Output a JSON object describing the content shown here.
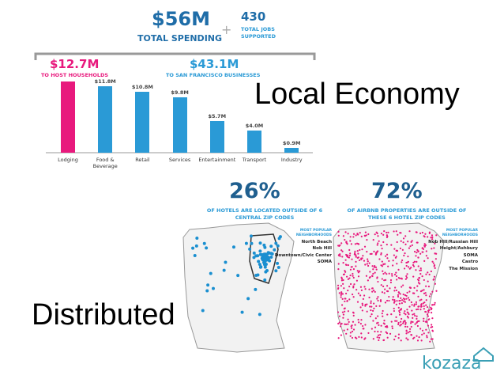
{
  "header": {
    "spending": "$56M",
    "spending_label": "TOTAL SPENDING",
    "plus": "+",
    "jobs": "430",
    "jobs_label": "TOTAL JOBS SUPPORTED",
    "households": "$12.7M",
    "households_label": "TO HOST HOUSEHOLDS",
    "businesses": "$43.1M",
    "businesses_label": "TO SAN FRANCISCO BUSINESSES"
  },
  "chart_data": {
    "type": "bar",
    "categories": [
      "Lodging",
      "Food & Beverage",
      "Retail",
      "Services",
      "Entertainment",
      "Transport",
      "Industry"
    ],
    "values": [
      12.7,
      11.8,
      10.8,
      9.8,
      5.7,
      4.0,
      0.9
    ],
    "value_labels": [
      "$12.7M",
      "$11.8M",
      "$10.8M",
      "$9.8M",
      "$5.7M",
      "$4.0M",
      "$0.9M"
    ],
    "colors": [
      "#e8197d",
      "#2a9ad6",
      "#2a9ad6",
      "#2a9ad6",
      "#2a9ad6",
      "#2a9ad6",
      "#2a9ad6"
    ]
  },
  "maps": [
    {
      "stat": "26%",
      "caption": "OF HOTELS ARE LOCATED OUTSIDE OF 6 CENTRAL ZIP CODES",
      "list_title": "MOST POPULAR NEIGHBORHOODS",
      "neighborhoods": [
        "North Beach",
        "Nob Hill",
        "Downtown/Civic Center",
        "SOMA"
      ]
    },
    {
      "stat": "72%",
      "caption": "OF AIRBNB PROPERTIES ARE OUTSIDE OF THESE 6 HOTEL ZIP CODES",
      "list_title": "MOST POPULAR NEIGHBORHOODS",
      "neighborhoods": [
        "Nob Hill/Russian Hill",
        "Height/Ashbury",
        "SOMA",
        "Castro",
        "The Mission"
      ]
    }
  ],
  "overlay": {
    "economy": "Local Economy",
    "distributed": "Distributed"
  },
  "logo": "kozaza"
}
